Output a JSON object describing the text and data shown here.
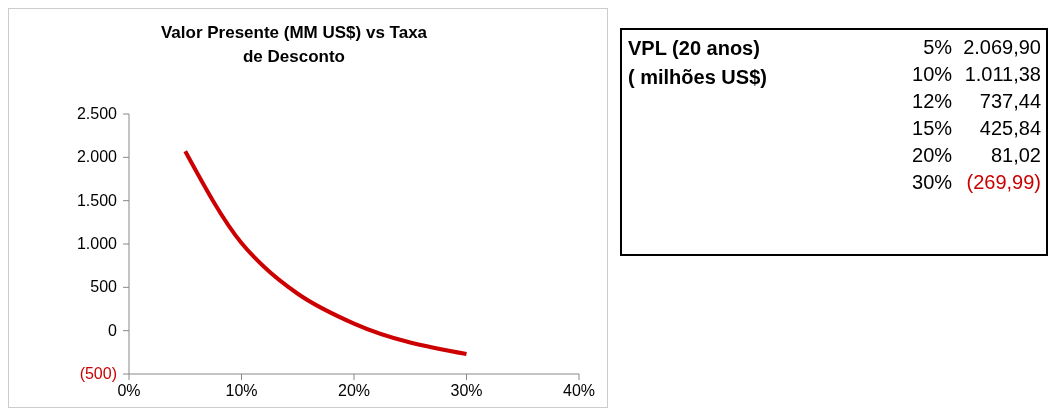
{
  "chart_data": {
    "type": "line",
    "title": "Valor Presente (MM US$) vs Taxa de Desconto",
    "x": [
      5,
      10,
      12,
      15,
      20,
      30
    ],
    "series": [
      {
        "color": "#cc0000",
        "values": [
          2069.9,
          1011.38,
          737.44,
          425.84,
          81.02,
          -269.99
        ]
      }
    ],
    "xlim": [
      0,
      40
    ],
    "xticks": [
      {
        "value": 0,
        "label": "0%"
      },
      {
        "value": 10,
        "label": "10%"
      },
      {
        "value": 20,
        "label": "20%"
      },
      {
        "value": 30,
        "label": "30%"
      },
      {
        "value": 40,
        "label": "40%"
      }
    ],
    "ylim": [
      -500,
      2500
    ],
    "yticks": [
      {
        "value": -500,
        "label": "(500)"
      },
      {
        "value": 0,
        "label": "0"
      },
      {
        "value": 500,
        "label": "500"
      },
      {
        "value": 1000,
        "label": "1.000"
      },
      {
        "value": 1500,
        "label": "1.500"
      },
      {
        "value": 2000,
        "label": "2.000"
      },
      {
        "value": 2500,
        "label": "2.500"
      }
    ],
    "grid": false,
    "legend": false,
    "marker": "none",
    "line_style": "solid",
    "annotations": [
      "VPL (20 anos)",
      "( milhões US$)",
      "5%",
      "2.069,90",
      "10%",
      "1.011,38",
      "12%",
      "737,44",
      "15%",
      "425,84",
      "20%",
      "81,02",
      "30%",
      "(269,99)"
    ]
  }
}
